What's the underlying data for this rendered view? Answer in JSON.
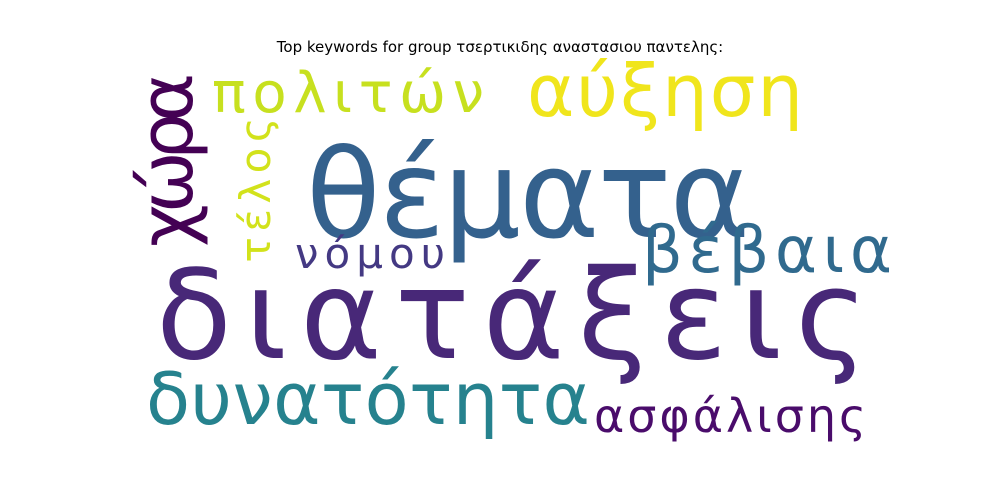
{
  "chart_data": {
    "type": "wordcloud",
    "title": "Top keywords for group τσερτικιδης αναστασιου παντελης:",
    "words": [
      {
        "text": "διατάξεις",
        "weight": 100,
        "color": "#482878",
        "orientation": "horizontal"
      },
      {
        "text": "θέματα",
        "weight": 82,
        "color": "#34618d",
        "orientation": "horizontal"
      },
      {
        "text": "δυνατότητα",
        "weight": 60,
        "color": "#26828e",
        "orientation": "horizontal"
      },
      {
        "text": "χώρα",
        "weight": 56,
        "color": "#440154",
        "orientation": "vertical"
      },
      {
        "text": "αύξηση",
        "weight": 55,
        "color": "#f0e51c",
        "orientation": "horizontal"
      },
      {
        "text": "βέβαια",
        "weight": 50,
        "color": "#306a8e",
        "orientation": "horizontal"
      },
      {
        "text": "πολιτών",
        "weight": 48,
        "color": "#c7e01f",
        "orientation": "horizontal"
      },
      {
        "text": "ασφάλισης",
        "weight": 40,
        "color": "#4a0c6b",
        "orientation": "horizontal"
      },
      {
        "text": "νόμου",
        "weight": 37,
        "color": "#443983",
        "orientation": "horizontal"
      },
      {
        "text": "τέλος",
        "weight": 35,
        "color": "#d2e21b",
        "orientation": "vertical"
      }
    ]
  }
}
